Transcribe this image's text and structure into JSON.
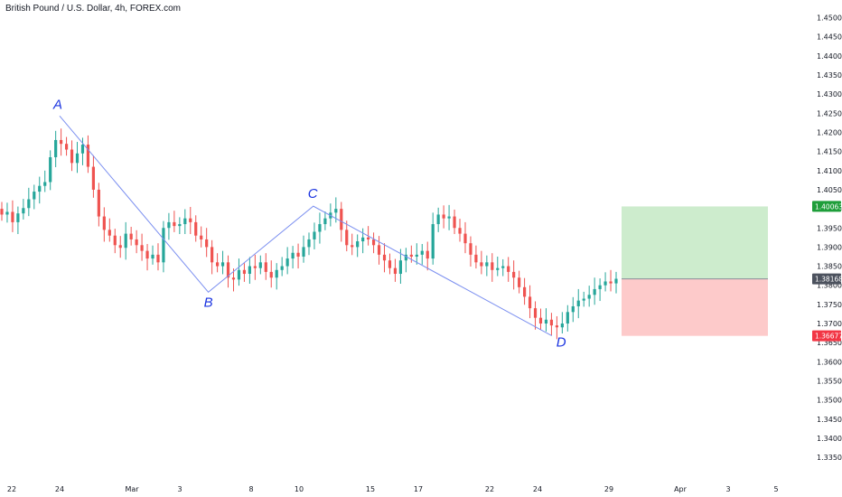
{
  "header": {
    "title": "British Pound / U.S. Dollar, 4h, FOREX.com"
  },
  "colors": {
    "up": "#26a69a",
    "down": "#ef5350",
    "pattern_line": "#7b8ff0",
    "wave_label": "#1a33e0",
    "target_zone": "#cdeccd",
    "stop_zone": "#fdcaca",
    "target_badge": "#1e9e3a",
    "entry_badge": "#4c525e",
    "stop_badge": "#f23645"
  },
  "chart_data": {
    "type": "candlestick",
    "title": "British Pound / U.S. Dollar, 4h, FOREX.com",
    "ylim": [
      1.331,
      1.4525
    ],
    "y_tick_labels": [
      "1.33500",
      "1.34000",
      "1.34500",
      "1.35000",
      "1.35500",
      "1.36000",
      "1.36500",
      "1.37000",
      "1.37500",
      "1.38000",
      "1.38500",
      "1.39000",
      "1.39500",
      "1.40000",
      "1.40500",
      "1.41000",
      "1.41500",
      "1.42000",
      "1.42500",
      "1.43000",
      "1.43500",
      "1.44000",
      "1.44500",
      "1.45000"
    ],
    "x_ticks": [
      {
        "date": "2021-02-22",
        "label": "22"
      },
      {
        "date": "2021-02-24",
        "label": "24"
      },
      {
        "date": "2021-03-01",
        "label": "Mar"
      },
      {
        "date": "2021-03-03",
        "label": "3"
      },
      {
        "date": "2021-03-08",
        "label": "8"
      },
      {
        "date": "2021-03-10",
        "label": "10"
      },
      {
        "date": "2021-03-15",
        "label": "15"
      },
      {
        "date": "2021-03-17",
        "label": "17"
      },
      {
        "date": "2021-03-22",
        "label": "22"
      },
      {
        "date": "2021-03-24",
        "label": "24"
      },
      {
        "date": "2021-03-29",
        "label": "29"
      },
      {
        "date": "2021-04-01",
        "label": "Apr"
      },
      {
        "date": "2021-04-03",
        "label": "3"
      },
      {
        "date": "2021-04-05",
        "label": "5"
      }
    ],
    "wave_points": [
      {
        "label": "A",
        "date": "2021-02-24",
        "price": 1.4243
      },
      {
        "label": "B",
        "date": "2021-03-05",
        "price": 1.3782
      },
      {
        "label": "C",
        "date": "2021-03-11",
        "price": 1.4007
      },
      {
        "label": "D",
        "date": "2021-03-25",
        "price": 1.3668
      }
    ],
    "position": {
      "type": "long",
      "entry": 1.38168,
      "target": 1.40063,
      "stop": 1.36677,
      "from_date": "2021-03-29",
      "to_date": "2021-04-05"
    },
    "price_labels": {
      "target": "1.40063",
      "entry": "1.38168",
      "stop": "1.36677"
    },
    "closes": [
      1.3985,
      1.3992,
      1.3965,
      1.3988,
      1.4002,
      1.4025,
      1.4045,
      1.406,
      1.407,
      1.4135,
      1.418,
      1.417,
      1.4155,
      1.412,
      1.4145,
      1.4168,
      1.411,
      1.405,
      1.398,
      1.3945,
      1.393,
      1.3905,
      1.3898,
      1.3935,
      1.392,
      1.3905,
      1.389,
      1.387,
      1.388,
      1.386,
      1.395,
      1.3965,
      1.3955,
      1.396,
      1.3975,
      1.3965,
      1.393,
      1.392,
      1.39,
      1.386,
      1.385,
      1.386,
      1.382,
      1.3815,
      1.384,
      1.383,
      1.385,
      1.3845,
      1.386,
      1.3835,
      1.382,
      1.384,
      1.385,
      1.387,
      1.3885,
      1.3875,
      1.39,
      1.392,
      1.394,
      1.396,
      1.3975,
      1.399,
      1.4,
      1.3945,
      1.3905,
      1.39,
      1.3915,
      1.3925,
      1.392,
      1.3905,
      1.388,
      1.3865,
      1.3845,
      1.383,
      1.3865,
      1.388,
      1.3875,
      1.388,
      1.389,
      1.387,
      1.396,
      1.3985,
      1.3975,
      1.398,
      1.395,
      1.3935,
      1.391,
      1.388,
      1.386,
      1.385,
      1.386,
      1.384,
      1.3845,
      1.385,
      1.3835,
      1.382,
      1.3795,
      1.377,
      1.374,
      1.3715,
      1.37,
      1.371,
      1.3695,
      1.369,
      1.37,
      1.373,
      1.3745,
      1.376,
      1.3765,
      1.3775,
      1.379,
      1.38,
      1.381,
      1.3805,
      1.3817
    ]
  }
}
